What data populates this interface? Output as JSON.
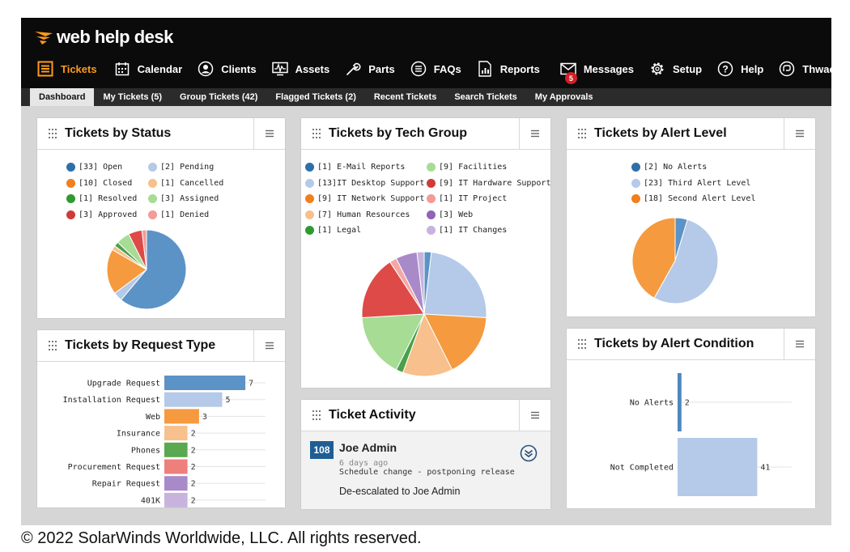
{
  "app": {
    "brand": "web help desk",
    "copyright": "© 2022 SolarWinds Worldwide, LLC. All rights reserved.",
    "accent_color": "#ff9a1a"
  },
  "nav": {
    "items": [
      {
        "label": "Tickets",
        "icon": "list-icon",
        "active": true
      },
      {
        "label": "Calendar",
        "icon": "calendar-icon"
      },
      {
        "label": "Clients",
        "icon": "user-circle-icon"
      },
      {
        "label": "Assets",
        "icon": "monitor-pulse-icon"
      },
      {
        "label": "Parts",
        "icon": "wrench-icon"
      },
      {
        "label": "FAQs",
        "icon": "faq-list-icon"
      },
      {
        "label": "Reports",
        "icon": "report-chart-icon"
      },
      {
        "label": "Messages",
        "icon": "envelope-icon",
        "badge": "5"
      },
      {
        "label": "Setup",
        "icon": "gear-icon"
      },
      {
        "label": "Help",
        "icon": "question-icon"
      },
      {
        "label": "Thwack",
        "icon": "thwack-icon"
      }
    ]
  },
  "subnav": {
    "tabs": [
      {
        "label": "Dashboard",
        "active": true
      },
      {
        "label": "My Tickets (5)"
      },
      {
        "label": "Group Tickets (42)"
      },
      {
        "label": "Flagged Tickets (2)"
      },
      {
        "label": "Recent Tickets"
      },
      {
        "label": "Search Tickets"
      },
      {
        "label": "My Approvals"
      }
    ]
  },
  "panels": {
    "status": {
      "title": "Tickets by Status"
    },
    "techgroup": {
      "title": "Tickets by Tech Group"
    },
    "alertlevel": {
      "title": "Tickets by Alert Level"
    },
    "requesttype": {
      "title": "Tickets by Request Type"
    },
    "activity": {
      "title": "Ticket Activity"
    },
    "alertcondition": {
      "title": "Tickets by Alert Condition"
    }
  },
  "activity": {
    "ticket_number": "108",
    "user": "Joe Admin",
    "time_ago": "6 days ago",
    "subject": "Schedule change - postponing release",
    "detail": "De-escalated to Joe Admin"
  },
  "chart_data": [
    {
      "id": "status",
      "type": "pie",
      "title": "Tickets by Status",
      "legend": [
        "[33] Open",
        "[2] Pending",
        "[10] Closed",
        "[1] Cancelled",
        "[1] Resolved",
        "[3] Assigned",
        "[3] Approved",
        "[1] Denied"
      ],
      "slices": [
        {
          "name": "Open",
          "value": 33,
          "color": "#5b93c7"
        },
        {
          "name": "Pending",
          "value": 2,
          "color": "#b5c9e8"
        },
        {
          "name": "Closed",
          "value": 10,
          "color": "#f59a3e"
        },
        {
          "name": "Cancelled",
          "value": 1,
          "color": "#f7c08c"
        },
        {
          "name": "Resolved",
          "value": 1,
          "color": "#4aa04a"
        },
        {
          "name": "Assigned",
          "value": 3,
          "color": "#a6dc93"
        },
        {
          "name": "Approved",
          "value": 3,
          "color": "#dd4a48"
        },
        {
          "name": "Denied",
          "value": 1,
          "color": "#f49a97"
        }
      ]
    },
    {
      "id": "techgroup",
      "type": "pie",
      "title": "Tickets by Tech Group",
      "legend": [
        "[1] E-Mail Reports",
        "[9] Facilities",
        "[13]IT Desktop Support",
        "[9] IT Hardware Support",
        "[9] IT Network Support",
        "[1] IT Project",
        "[7] Human Resources",
        "[3] Web",
        "[1] Legal",
        "[1] IT Changes"
      ],
      "slices": [
        {
          "name": "E-Mail Reports",
          "value": 1,
          "color": "#5b93c7"
        },
        {
          "name": "IT Desktop Support",
          "value": 13,
          "color": "#b5c9e8"
        },
        {
          "name": "IT Network Support",
          "value": 9,
          "color": "#f59a3e"
        },
        {
          "name": "Human Resources",
          "value": 7,
          "color": "#f7c08c"
        },
        {
          "name": "Legal",
          "value": 1,
          "color": "#4aa04a"
        },
        {
          "name": "Facilities",
          "value": 9,
          "color": "#a6dc93"
        },
        {
          "name": "IT Hardware Support",
          "value": 9,
          "color": "#dd4a48"
        },
        {
          "name": "IT Project",
          "value": 1,
          "color": "#f4a8a5"
        },
        {
          "name": "Web",
          "value": 3,
          "color": "#a98ac9"
        },
        {
          "name": "IT Changes",
          "value": 1,
          "color": "#c8b3dc"
        }
      ]
    },
    {
      "id": "alertlevel",
      "type": "pie",
      "title": "Tickets by Alert Level",
      "legend": [
        "[2] No Alerts",
        "[23] Third Alert Level",
        "[18] Second Alert Level"
      ],
      "slices": [
        {
          "name": "No Alerts",
          "value": 2,
          "color": "#5b93c7"
        },
        {
          "name": "Third Alert Level",
          "value": 23,
          "color": "#b5c9e8"
        },
        {
          "name": "Second Alert Level",
          "value": 18,
          "color": "#f59a3e"
        }
      ]
    },
    {
      "id": "requesttype",
      "type": "bar",
      "orientation": "horizontal",
      "title": "Tickets by Request Type",
      "categories": [
        "Upgrade Request",
        "Installation Request",
        "Web",
        "Insurance",
        "Phones",
        "Procurement Request",
        "Repair Request",
        "401K"
      ],
      "values": [
        7,
        5,
        3,
        2,
        2,
        2,
        2,
        2
      ],
      "colors": [
        "#5b93c7",
        "#b5c9e8",
        "#f59a3e",
        "#f7c08c",
        "#5aa84f",
        "#ef7f7c",
        "#a98ac9",
        "#c8b3dc"
      ]
    },
    {
      "id": "alertcondition",
      "type": "bar",
      "orientation": "horizontal",
      "title": "Tickets by Alert Condition",
      "categories": [
        "No Alerts",
        "Not Completed"
      ],
      "values": [
        2,
        41
      ],
      "colors": [
        "#4f87bd",
        "#b5c9e8"
      ]
    }
  ]
}
